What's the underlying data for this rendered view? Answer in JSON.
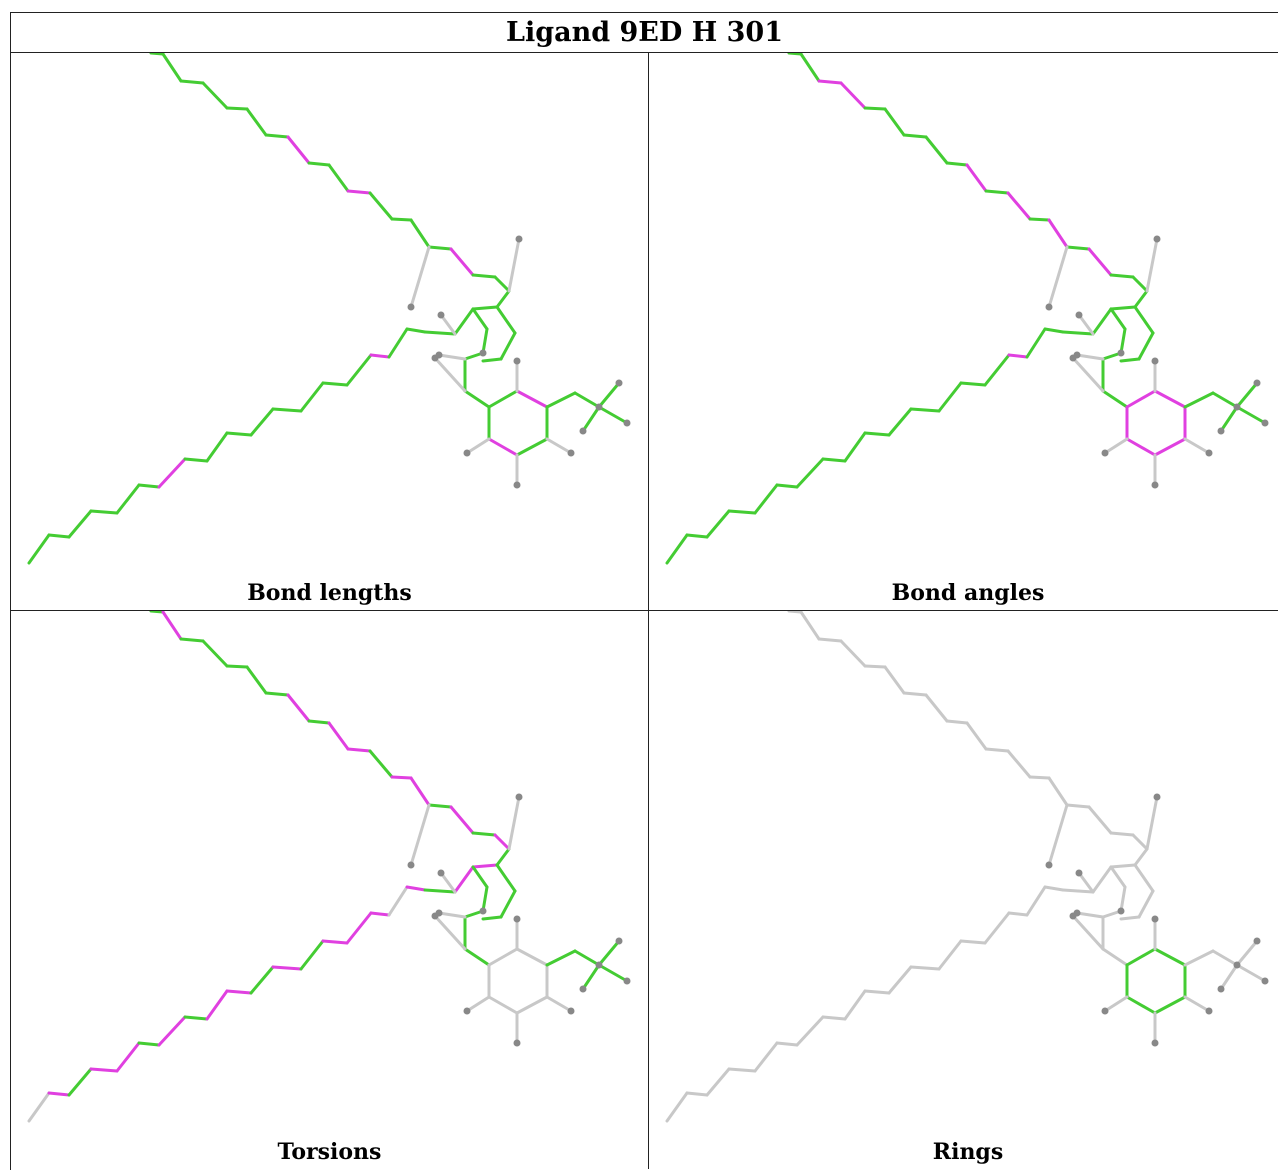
{
  "title": "Ligand 9ED H 301",
  "colors": {
    "outlier": "#e040e0",
    "ok": "#44cc33",
    "neutral": "#c8c8c8",
    "atom": "#888888"
  },
  "panels": [
    {
      "caption": "Bond lengths",
      "bond_colors": {
        "upper": [
          "g",
          "g",
          "g",
          "g",
          "g",
          "g",
          "g",
          "m",
          "g",
          "g",
          "m",
          "g",
          "g",
          "g",
          "g",
          "m"
        ],
        "lower": [
          "g",
          "g",
          "g",
          "g",
          "g",
          "g",
          "m",
          "g",
          "g",
          "g",
          "g",
          "g",
          "g",
          "g",
          "g",
          "m"
        ],
        "ring": [
          "m",
          "g",
          "g",
          "m",
          "g",
          "g"
        ],
        "subs": "g"
      }
    },
    {
      "caption": "Bond angles",
      "bond_colors": {
        "upper": [
          "g",
          "g",
          "m",
          "m",
          "g",
          "g",
          "g",
          "g",
          "g",
          "m",
          "g",
          "m",
          "g",
          "m",
          "g",
          "m"
        ],
        "lower": [
          "g",
          "g",
          "g",
          "g",
          "g",
          "g",
          "g",
          "g",
          "g",
          "g",
          "g",
          "g",
          "g",
          "g",
          "g",
          "m"
        ],
        "ring": [
          "m",
          "m",
          "m",
          "m",
          "m",
          "m"
        ],
        "subs": "g"
      }
    },
    {
      "caption": "Torsions",
      "bond_colors": {
        "upper": [
          "g",
          "m",
          "g",
          "g",
          "g",
          "g",
          "g",
          "m",
          "g",
          "m",
          "m",
          "g",
          "m",
          "m",
          "g",
          "m"
        ],
        "lower": [
          "n",
          "m",
          "g",
          "m",
          "m",
          "g",
          "m",
          "g",
          "m",
          "m",
          "g",
          "m",
          "g",
          "m",
          "m",
          "m"
        ],
        "ring": [
          "n",
          "n",
          "n",
          "n",
          "n",
          "n"
        ],
        "subs": "g"
      }
    },
    {
      "caption": "Rings",
      "bond_colors": {
        "upper": [
          "n",
          "n",
          "n",
          "n",
          "n",
          "n",
          "n",
          "n",
          "n",
          "n",
          "n",
          "n",
          "n",
          "n",
          "n",
          "n"
        ],
        "lower": [
          "n",
          "n",
          "n",
          "n",
          "n",
          "n",
          "n",
          "n",
          "n",
          "n",
          "n",
          "n",
          "n",
          "n",
          "n",
          "n"
        ],
        "ring": [
          "g",
          "g",
          "g",
          "g",
          "g",
          "g"
        ],
        "subs": "n"
      }
    }
  ]
}
